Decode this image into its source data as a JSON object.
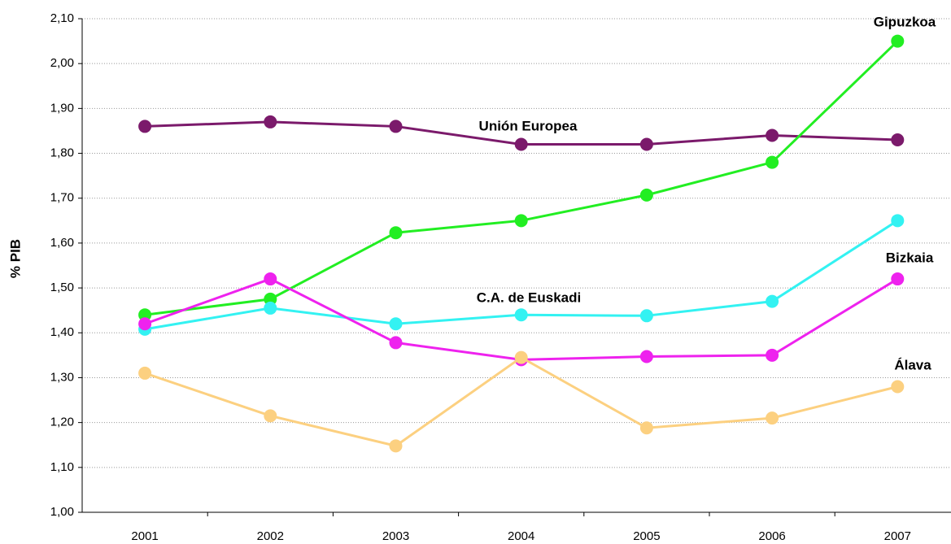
{
  "chart_data": {
    "type": "line",
    "y_label": "% PIB",
    "categories": [
      "2001",
      "2002",
      "2003",
      "2004",
      "2005",
      "2006",
      "2007"
    ],
    "series": [
      {
        "name": "Unión Europea",
        "color": "#7b1a6b",
        "values": [
          1.86,
          1.87,
          1.86,
          1.82,
          1.82,
          1.84,
          1.83
        ]
      },
      {
        "name": "Gipuzkoa",
        "color": "#22ee22",
        "values": [
          1.44,
          1.475,
          1.623,
          1.65,
          1.707,
          1.78,
          2.05
        ]
      },
      {
        "name": "C.A. de Euskadi",
        "color": "#33f2f2",
        "values": [
          1.408,
          1.455,
          1.42,
          1.44,
          1.438,
          1.47,
          1.65
        ]
      },
      {
        "name": "Bizkaia",
        "color": "#ee22ee",
        "values": [
          1.42,
          1.52,
          1.378,
          1.34,
          1.347,
          1.35,
          1.52
        ]
      },
      {
        "name": "Álava",
        "color": "#fcd080",
        "values": [
          1.31,
          1.215,
          1.148,
          1.345,
          1.188,
          1.21,
          1.28
        ]
      }
    ],
    "ylim": [
      1.0,
      2.1
    ],
    "yticks": [
      {
        "value": 1.0,
        "label": "1,00"
      },
      {
        "value": 1.1,
        "label": "1,10"
      },
      {
        "value": 1.2,
        "label": "1,20"
      },
      {
        "value": 1.3,
        "label": "1,30"
      },
      {
        "value": 1.4,
        "label": "1,40"
      },
      {
        "value": 1.5,
        "label": "1,50"
      },
      {
        "value": 1.6,
        "label": "1,60"
      },
      {
        "value": 1.7,
        "label": "1,70"
      },
      {
        "value": 1.8,
        "label": "1,80"
      },
      {
        "value": 1.9,
        "label": "1,90"
      },
      {
        "value": 2.0,
        "label": "2,00"
      },
      {
        "value": 2.1,
        "label": "2,10"
      }
    ],
    "grid": true
  }
}
